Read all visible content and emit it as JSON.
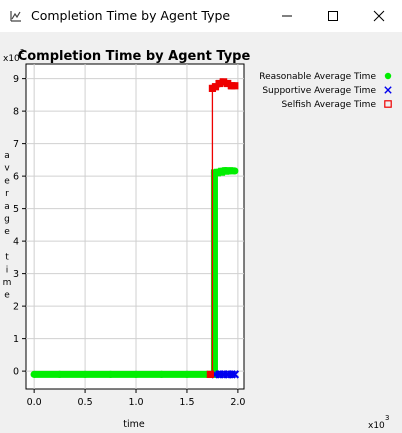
{
  "window": {
    "title": "Completion Time by Agent Type",
    "icon": "chart-app-icon",
    "controls": [
      "minimize-icon",
      "maximize-icon",
      "close-icon"
    ]
  },
  "chart_data": {
    "type": "line",
    "title": "Completion Time by Agent Type",
    "xlabel": "time",
    "ylabel": "average time",
    "x_multiplier": "x10^3",
    "y_multiplier": "x10^2",
    "xlim": [
      -0.08,
      2.06
    ],
    "ylim": [
      -0.55,
      9.45
    ],
    "xticks": [
      0.0,
      0.5,
      1.0,
      1.5,
      2.0
    ],
    "xtick_labels": [
      "0.0",
      "0.5",
      "1.0",
      "1.5",
      "2.0"
    ],
    "yticks": [
      0,
      1,
      2,
      3,
      4,
      5,
      6,
      7,
      8,
      9
    ],
    "ytick_labels": [
      "0",
      "1",
      "2",
      "3",
      "4",
      "5",
      "6",
      "7",
      "8",
      "9"
    ],
    "grid": true,
    "legend_position": "right",
    "series": [
      {
        "name": "Reasonable Average Time",
        "color": "#00ee00",
        "marker": "circle",
        "x": [
          0.0,
          0.25,
          0.5,
          0.75,
          1.0,
          1.25,
          1.5,
          1.7,
          1.76,
          1.77,
          1.8,
          1.84,
          1.88,
          1.92,
          1.97
        ],
        "y": [
          -0.1,
          -0.1,
          -0.1,
          -0.1,
          -0.1,
          -0.1,
          -0.1,
          -0.1,
          -0.1,
          6.1,
          6.12,
          6.15,
          6.17,
          6.16,
          6.16
        ]
      },
      {
        "name": "Supportive Average Time",
        "color": "#0000ee",
        "marker": "x",
        "x": [
          1.78,
          1.82,
          1.86,
          1.9,
          1.94,
          1.97
        ],
        "y": [
          -0.1,
          -0.1,
          -0.1,
          -0.1,
          -0.1,
          -0.1
        ]
      },
      {
        "name": "Selfish Average Time",
        "color": "#ee0000",
        "marker": "square",
        "x": [
          1.73,
          1.75,
          1.78,
          1.82,
          1.86,
          1.9,
          1.94,
          1.97
        ],
        "y": [
          -0.1,
          8.7,
          8.75,
          8.85,
          8.9,
          8.85,
          8.78,
          8.78
        ]
      }
    ]
  }
}
